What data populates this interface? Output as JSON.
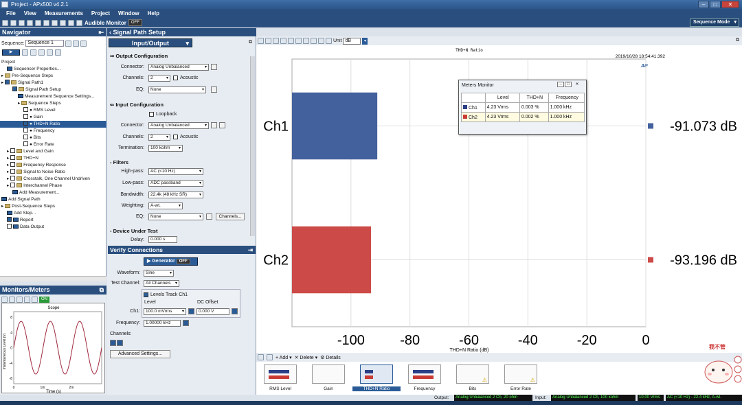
{
  "window": {
    "title": "Project - APx500 v4.2.1"
  },
  "menu": [
    "File",
    "View",
    "Measurements",
    "Project",
    "Window",
    "Help"
  ],
  "toolbar": {
    "audible_monitor": "Audible Monitor",
    "audible_state": "OFF",
    "sequence_mode": "Sequence Mode"
  },
  "navigator": {
    "title": "Navigator",
    "sequence_label": "Sequence:",
    "sequence_value": "Sequence 1",
    "tree": [
      {
        "text": "Project",
        "indent": 0,
        "kind": "none"
      },
      {
        "text": "Sequencer Properties...",
        "indent": 1,
        "kind": "icon"
      },
      {
        "text": "Pre-Sequence Steps",
        "indent": 0,
        "kind": "folder",
        "exp": true
      },
      {
        "text": "Signal Path1",
        "indent": 0,
        "kind": "folder",
        "exp": true,
        "chk": true
      },
      {
        "text": "Signal Path Setup",
        "indent": 2,
        "kind": "folder",
        "chk": true
      },
      {
        "text": "Measurement Sequence Settings...",
        "indent": 3,
        "kind": "icon"
      },
      {
        "text": "Sequence Steps",
        "indent": 3,
        "kind": "folder",
        "exp": true
      },
      {
        "text": "RMS Level",
        "indent": 4,
        "kind": "dot",
        "chk": false
      },
      {
        "text": "Gain",
        "indent": 4,
        "kind": "dot",
        "chk": false
      },
      {
        "text": "THD+N Ratio",
        "indent": 4,
        "kind": "dot",
        "chk": true,
        "sel": true
      },
      {
        "text": "Frequency",
        "indent": 4,
        "kind": "dot",
        "chk": false
      },
      {
        "text": "Bits",
        "indent": 4,
        "kind": "dot",
        "chk": false
      },
      {
        "text": "Error Rate",
        "indent": 4,
        "kind": "dot",
        "chk": false
      },
      {
        "text": "Level and Gain",
        "indent": 1,
        "kind": "folder",
        "exp": true,
        "chk": false
      },
      {
        "text": "THD+N",
        "indent": 1,
        "kind": "folder",
        "exp": true,
        "chk": false
      },
      {
        "text": "Frequency Response",
        "indent": 1,
        "kind": "folder",
        "exp": true,
        "chk": false
      },
      {
        "text": "Signal to Noise Ratio",
        "indent": 1,
        "kind": "folder",
        "exp": true,
        "chk": false
      },
      {
        "text": "Crosstalk, One Channel Undriven",
        "indent": 1,
        "kind": "folder",
        "exp": true,
        "chk": false
      },
      {
        "text": "Interchannel Phase",
        "indent": 1,
        "kind": "folder",
        "exp": true,
        "chk": false
      },
      {
        "text": "Add Measurement...",
        "indent": 2,
        "kind": "icon"
      },
      {
        "text": "Add Signal Path",
        "indent": 0,
        "kind": "icon"
      },
      {
        "text": "Post-Sequence Steps",
        "indent": 0,
        "kind": "folder",
        "exp": true
      },
      {
        "text": "Add Step...",
        "indent": 1,
        "kind": "icon"
      },
      {
        "text": "Report",
        "indent": 1,
        "kind": "icon",
        "chk": true
      },
      {
        "text": "Data Output",
        "indent": 1,
        "kind": "icon",
        "chk": false
      }
    ]
  },
  "monitors": {
    "title": "Monitors/Meters",
    "on": "ON",
    "scope_title": "Scope",
    "ylabel": "Instantaneous Level (V)",
    "xlabel": "Time (s)",
    "yticks": [
      "8",
      "4",
      "0",
      "-4",
      "-8"
    ],
    "xticks": [
      "0",
      "1m",
      "2m"
    ]
  },
  "signal_path": {
    "title": "Signal Path Setup",
    "io_label": "Input/Output",
    "output_config": "Output Configuration",
    "connector_label": "Connector:",
    "out_connector": "Analog Unbalanced",
    "channels_label": "Channels:",
    "out_channels": "2",
    "acoustic": "Acoustic",
    "eq_label": "EQ:",
    "out_eq": "None",
    "input_config": "Input Configuration",
    "loopback": "Loopback",
    "in_connector": "Analog Unbalanced",
    "in_channels": "2",
    "termination_label": "Termination:",
    "termination": "100 kohm",
    "filters": "Filters",
    "highpass_label": "High-pass:",
    "highpass": "AC (<10 Hz)",
    "lowpass_label": "Low-pass:",
    "lowpass": "ADC passband",
    "bandwidth_label": "Bandwidth:",
    "bandwidth": "22.4k (48 kHz SR)",
    "weighting_label": "Weighting:",
    "weighting": "A-wt.",
    "in_eq": "None",
    "channels_btn": "Channels...",
    "dut": "Device Under Test",
    "delay_label": "Delay:",
    "delay": "0.000 s"
  },
  "verify": {
    "title": "Verify Connections",
    "generator": "Generator",
    "generator_state": "OFF",
    "waveform_label": "Waveform:",
    "waveform": "Sine",
    "test_channel_label": "Test Channel:",
    "test_channel": "All Channels",
    "levels_track": "Levels Track Ch1",
    "level_hdr": "Level",
    "dc_offset_hdr": "DC Offset",
    "ch1_label": "Ch1:",
    "ch1_level": "100.0 mVrms",
    "ch1_dc": "0.000 V",
    "frequency_label": "Frequency:",
    "frequency": "1.00000 kHz",
    "channels_label": "Channels:",
    "advanced": "Advanced Settings..."
  },
  "graph_toolbar": {
    "unit_label": "Unit",
    "unit": "dB"
  },
  "graph": {
    "timestamp": "2019/10/28 18:54:41.392",
    "logo": "AP"
  },
  "chart_data": {
    "type": "bar",
    "orientation": "horizontal",
    "title": "THD+N Ratio",
    "xlabel": "THD+N Ratio (dB)",
    "ylabel": "",
    "categories": [
      "Ch1",
      "Ch2"
    ],
    "values": [
      -91.073,
      -93.196
    ],
    "value_labels": [
      "-91.073  dB",
      "-93.196  dB"
    ],
    "colors": [
      "#43619d",
      "#cc4a47"
    ],
    "xlim": [
      -120,
      0
    ],
    "xticks": [
      -100,
      -80,
      -60,
      -40,
      -20,
      0
    ],
    "grid": true
  },
  "meters_monitor": {
    "title": "Meters Monitor",
    "headers": [
      "",
      "Level",
      "THD+N",
      "Frequency"
    ],
    "rows": [
      {
        "ch": "Ch1",
        "level": "4.23 Vrms",
        "thdn": "0.003 %",
        "freq": "1.000 kHz",
        "color": "#2a3f86"
      },
      {
        "ch": "Ch2",
        "level": "4.23 Vrms",
        "thdn": "0.002 %",
        "freq": "1.000 kHz",
        "color": "#c83a33"
      }
    ]
  },
  "strip_toolbar": {
    "add": "Add",
    "delete": "Delete",
    "details": "Details"
  },
  "strip": [
    "RMS Level",
    "Gain",
    "THD+N Ratio",
    "Frequency",
    "Bits",
    "Error Rate"
  ],
  "status": {
    "output_label": "Output:",
    "output": "Analog Unbalanced 2 Ch, 20 ohm",
    "input_label": "Input:",
    "input": "Analog Unbalanced 2 Ch, 100 kohm",
    "vrms": "10.00 Vrms",
    "filter": "AC (<10 Hz) - 22.4 kHz, A-wt."
  },
  "sticker": {
    "text": "我不管"
  }
}
